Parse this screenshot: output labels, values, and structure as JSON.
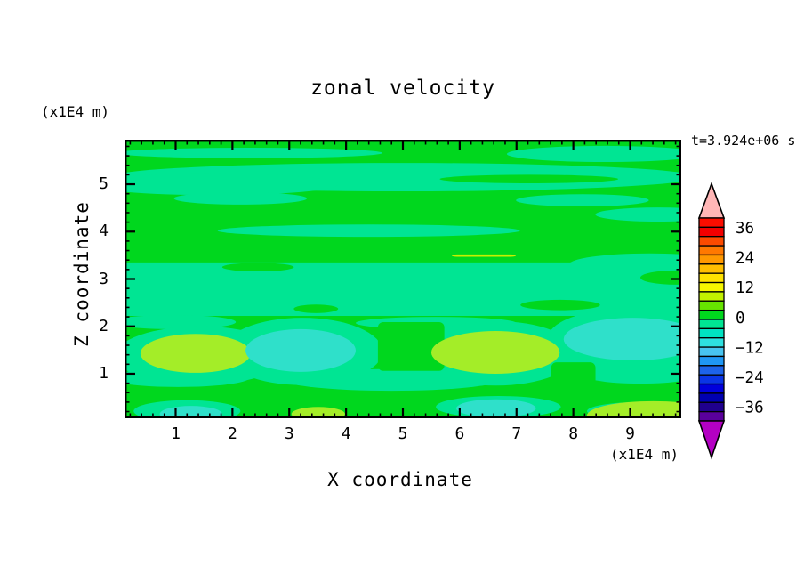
{
  "ui": {
    "title": "zonal velocity",
    "time_label": "t=3.924e+06 s",
    "y_unit": "(x1E4 m)",
    "x_unit": "(x1E4 m)",
    "y_axis_label": "Z coordinate",
    "x_axis_label": "X coordinate"
  },
  "chart_data": {
    "type": "contour",
    "title": "zonal velocity",
    "xlabel": "X coordinate",
    "ylabel": "Z coordinate",
    "x_unit": "(x1E4 m)",
    "y_unit": "(x1E4 m)",
    "time_label": "t=3.924e+06 s",
    "xlim": [
      0.1,
      9.9
    ],
    "ylim": [
      0.06,
      5.94
    ],
    "x_ticks": [
      1,
      2,
      3,
      4,
      5,
      6,
      7,
      8,
      9
    ],
    "y_ticks": [
      1,
      2,
      3,
      4,
      5
    ],
    "minor_tick_step": 0.2,
    "grid": false,
    "colorbar": {
      "labels": [
        "36",
        "24",
        "12",
        "0",
        "−12",
        "−24",
        "−36"
      ],
      "top_arrow": "#ffb6b6",
      "bottom_arrow": "#b400c3",
      "segments_top_to_bottom": [
        "#fb0d00",
        "#f20000",
        "#fc4a00",
        "#ff7800",
        "#ff9800",
        "#ffbe00",
        "#ffe200",
        "#f6f600",
        "#c2f000",
        "#66e400",
        "#00d71e",
        "#00e593",
        "#00e2c2",
        "#2ee0e0",
        "#48c4f0",
        "#1f97f5",
        "#1d63ea",
        "#0a35e6",
        "#0000dc",
        "#0000b0",
        "#1f008e",
        "#5a009b"
      ]
    },
    "value_colors": {
      "green": "#00d71e",
      "spring": "#00e593",
      "cyan": "#2fe0ca",
      "chartreuse": "#a4ed28",
      "yellow": "#c8f000"
    },
    "background_value_color": "green",
    "regions": [
      {
        "t": "e",
        "c": "spring",
        "x": 2.29,
        "z": 5.66,
        "rx": 2.35,
        "rz": 0.11
      },
      {
        "t": "e",
        "c": "spring",
        "x": 8.55,
        "z": 5.64,
        "rx": 1.72,
        "rz": 0.17
      },
      {
        "t": "e",
        "c": "spring",
        "x": 5.0,
        "z": 5.15,
        "rx": 5.17,
        "rz": 0.3
      },
      {
        "t": "e",
        "c": "spring",
        "x": 1.67,
        "z": 5.0,
        "rx": 2.19,
        "rz": 0.23
      },
      {
        "t": "e",
        "c": "spring",
        "x": 2.14,
        "z": 4.7,
        "rx": 1.17,
        "rz": 0.13
      },
      {
        "t": "e",
        "c": "spring",
        "x": 8.16,
        "z": 4.66,
        "rx": 1.17,
        "rz": 0.13
      },
      {
        "t": "e",
        "c": "spring",
        "x": 9.49,
        "z": 4.36,
        "rx": 1.1,
        "rz": 0.15
      },
      {
        "t": "e",
        "c": "spring",
        "x": 4.4,
        "z": 4.02,
        "rx": 2.66,
        "rz": 0.13
      },
      {
        "t": "r",
        "c": "spring",
        "x": -0.06,
        "z": 3.35,
        "w": 10.11,
        "h": 1.13
      },
      {
        "t": "e",
        "c": "spring",
        "x": 9.34,
        "z": 3.31,
        "rx": 1.41,
        "rz": 0.23
      },
      {
        "t": "e",
        "c": "spring",
        "x": 0.96,
        "z": 2.09,
        "rx": 1.1,
        "rz": 0.15
      },
      {
        "t": "e",
        "c": "spring",
        "x": 5.58,
        "z": 2.07,
        "rx": 1.41,
        "rz": 0.13
      },
      {
        "t": "e",
        "c": "spring",
        "x": 9.49,
        "z": 2.15,
        "rx": 0.94,
        "rz": 0.15
      },
      {
        "t": "e",
        "c": "spring",
        "x": 1.43,
        "z": 1.38,
        "rx": 1.49,
        "rz": 0.62
      },
      {
        "t": "e",
        "c": "spring",
        "x": 3.23,
        "z": 1.47,
        "rx": 1.41,
        "rz": 0.71
      },
      {
        "t": "e",
        "c": "spring",
        "x": 6.64,
        "z": 1.43,
        "rx": 1.41,
        "rz": 0.68
      },
      {
        "t": "e",
        "c": "spring",
        "x": 9.02,
        "z": 1.71,
        "rx": 1.49,
        "rz": 0.68
      },
      {
        "t": "e",
        "c": "spring",
        "x": 4.8,
        "z": 0.87,
        "rx": 1.88,
        "rz": 0.23
      },
      {
        "t": "e",
        "c": "spring",
        "x": 1.04,
        "z": 0.91,
        "rx": 1.25,
        "rz": 0.19
      },
      {
        "t": "e",
        "c": "spring",
        "x": 9.18,
        "z": 1.02,
        "rx": 1.1,
        "rz": 0.23
      },
      {
        "t": "e",
        "c": "spring",
        "x": 1.2,
        "z": 0.21,
        "rx": 0.94,
        "rz": 0.23
      },
      {
        "t": "e",
        "c": "spring",
        "x": 6.68,
        "z": 0.3,
        "rx": 1.1,
        "rz": 0.23
      },
      {
        "t": "e",
        "c": "spring",
        "x": 9.18,
        "z": 0.21,
        "rx": 0.94,
        "rz": 0.19
      },
      {
        "t": "e",
        "c": "green",
        "x": 7.22,
        "z": 5.11,
        "rx": 1.57,
        "rz": 0.09
      },
      {
        "t": "e",
        "c": "green",
        "x": 2.45,
        "z": 3.25,
        "rx": 0.63,
        "rz": 0.09
      },
      {
        "t": "e",
        "c": "green",
        "x": 7.77,
        "z": 2.45,
        "rx": 0.7,
        "rz": 0.11
      },
      {
        "t": "e",
        "c": "green",
        "x": 3.47,
        "z": 2.37,
        "rx": 0.39,
        "rz": 0.09
      },
      {
        "t": "e",
        "c": "green",
        "x": 9.81,
        "z": 3.03,
        "rx": 0.63,
        "rz": 0.15
      },
      {
        "t": "r",
        "c": "green",
        "x": 4.56,
        "z": 2.09,
        "w": 1.17,
        "h": 1.03
      },
      {
        "t": "r",
        "c": "green",
        "x": 7.61,
        "z": 1.24,
        "w": 0.78,
        "h": 0.75
      },
      {
        "t": "e",
        "c": "chartreuse",
        "x": 1.35,
        "z": 1.43,
        "rx": 0.97,
        "rz": 0.41
      },
      {
        "t": "e",
        "c": "cyan",
        "x": 3.2,
        "z": 1.49,
        "rx": 0.97,
        "rz": 0.45
      },
      {
        "t": "e",
        "c": "chartreuse",
        "x": 6.63,
        "z": 1.45,
        "rx": 1.13,
        "rz": 0.45
      },
      {
        "t": "e",
        "c": "cyan",
        "x": 9.05,
        "z": 1.73,
        "rx": 1.22,
        "rz": 0.45
      },
      {
        "t": "e",
        "c": "chartreuse",
        "x": 9.41,
        "z": 0.12,
        "rx": 1.17,
        "rz": 0.3
      },
      {
        "t": "e",
        "c": "cyan",
        "x": 1.27,
        "z": 0.15,
        "rx": 0.55,
        "rz": 0.17
      },
      {
        "t": "e",
        "c": "cyan",
        "x": 6.64,
        "z": 0.27,
        "rx": 0.7,
        "rz": 0.19
      },
      {
        "t": "e",
        "c": "chartreuse",
        "x": 3.51,
        "z": 0.15,
        "rx": 0.47,
        "rz": 0.15
      },
      {
        "t": "r",
        "c": "yellow",
        "x": 5.86,
        "z": 3.52,
        "w": 1.13,
        "h": 0.05
      }
    ]
  }
}
